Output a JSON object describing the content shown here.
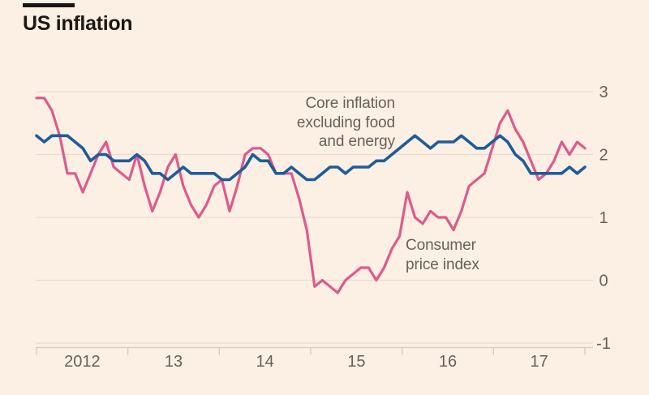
{
  "style": {
    "background": "#FCEFE3",
    "grid_color": "#EADCCF",
    "axis_color": "#D7C9BC",
    "axis_text_color": "#67615C",
    "title_color": "#1D1915"
  },
  "chart_data": {
    "type": "line",
    "title": "US inflation",
    "subtitle": "",
    "xlabel": "",
    "ylabel": "",
    "x_period": {
      "start": "Jan 2012",
      "end": "Dec 2017",
      "step": "month"
    },
    "x_tick_labels": [
      "2012",
      "13",
      "14",
      "15",
      "16",
      "17"
    ],
    "y_ticks": [
      3,
      2,
      1,
      0,
      -1
    ],
    "y_tick_labels": [
      "3",
      "2",
      "1",
      "0",
      "-1"
    ],
    "ylim": [
      -1,
      3
    ],
    "grid": "horizontal",
    "y_axis_side": "right",
    "legend_position": "inline-annotations",
    "series": [
      {
        "name": "Core inflation excluding food and energy",
        "label_lines": [
          "Core inflation",
          "excluding food",
          "and energy"
        ],
        "color": "#1F5C99",
        "values": [
          2.3,
          2.2,
          2.3,
          2.3,
          2.3,
          2.2,
          2.1,
          1.9,
          2.0,
          2.0,
          1.9,
          1.9,
          1.9,
          2.0,
          1.9,
          1.7,
          1.7,
          1.6,
          1.7,
          1.8,
          1.7,
          1.7,
          1.7,
          1.7,
          1.6,
          1.6,
          1.7,
          1.8,
          2.0,
          1.9,
          1.9,
          1.7,
          1.7,
          1.8,
          1.7,
          1.6,
          1.6,
          1.7,
          1.8,
          1.8,
          1.7,
          1.8,
          1.8,
          1.8,
          1.9,
          1.9,
          2.0,
          2.1,
          2.2,
          2.3,
          2.2,
          2.1,
          2.2,
          2.2,
          2.2,
          2.3,
          2.2,
          2.1,
          2.1,
          2.2,
          2.3,
          2.2,
          2.0,
          1.9,
          1.7,
          1.7,
          1.7,
          1.7,
          1.7,
          1.8,
          1.7,
          1.8
        ]
      },
      {
        "name": "Consumer price index",
        "label_lines": [
          "Consumer",
          "price index"
        ],
        "color": "#DE5A8D",
        "values": [
          2.9,
          2.9,
          2.7,
          2.3,
          1.7,
          1.7,
          1.4,
          1.7,
          2.0,
          2.2,
          1.8,
          1.7,
          1.6,
          2.0,
          1.5,
          1.1,
          1.4,
          1.8,
          2.0,
          1.5,
          1.2,
          1.0,
          1.2,
          1.5,
          1.6,
          1.1,
          1.5,
          2.0,
          2.1,
          2.1,
          2.0,
          1.7,
          1.7,
          1.7,
          1.3,
          0.8,
          -0.1,
          0.0,
          -0.1,
          -0.2,
          0.0,
          0.1,
          0.2,
          0.2,
          0.0,
          0.2,
          0.5,
          0.7,
          1.4,
          1.0,
          0.9,
          1.1,
          1.0,
          1.0,
          0.8,
          1.1,
          1.5,
          1.6,
          1.7,
          2.1,
          2.5,
          2.7,
          2.4,
          2.2,
          1.9,
          1.6,
          1.7,
          1.9,
          2.2,
          2.0,
          2.2,
          2.1
        ]
      }
    ]
  }
}
